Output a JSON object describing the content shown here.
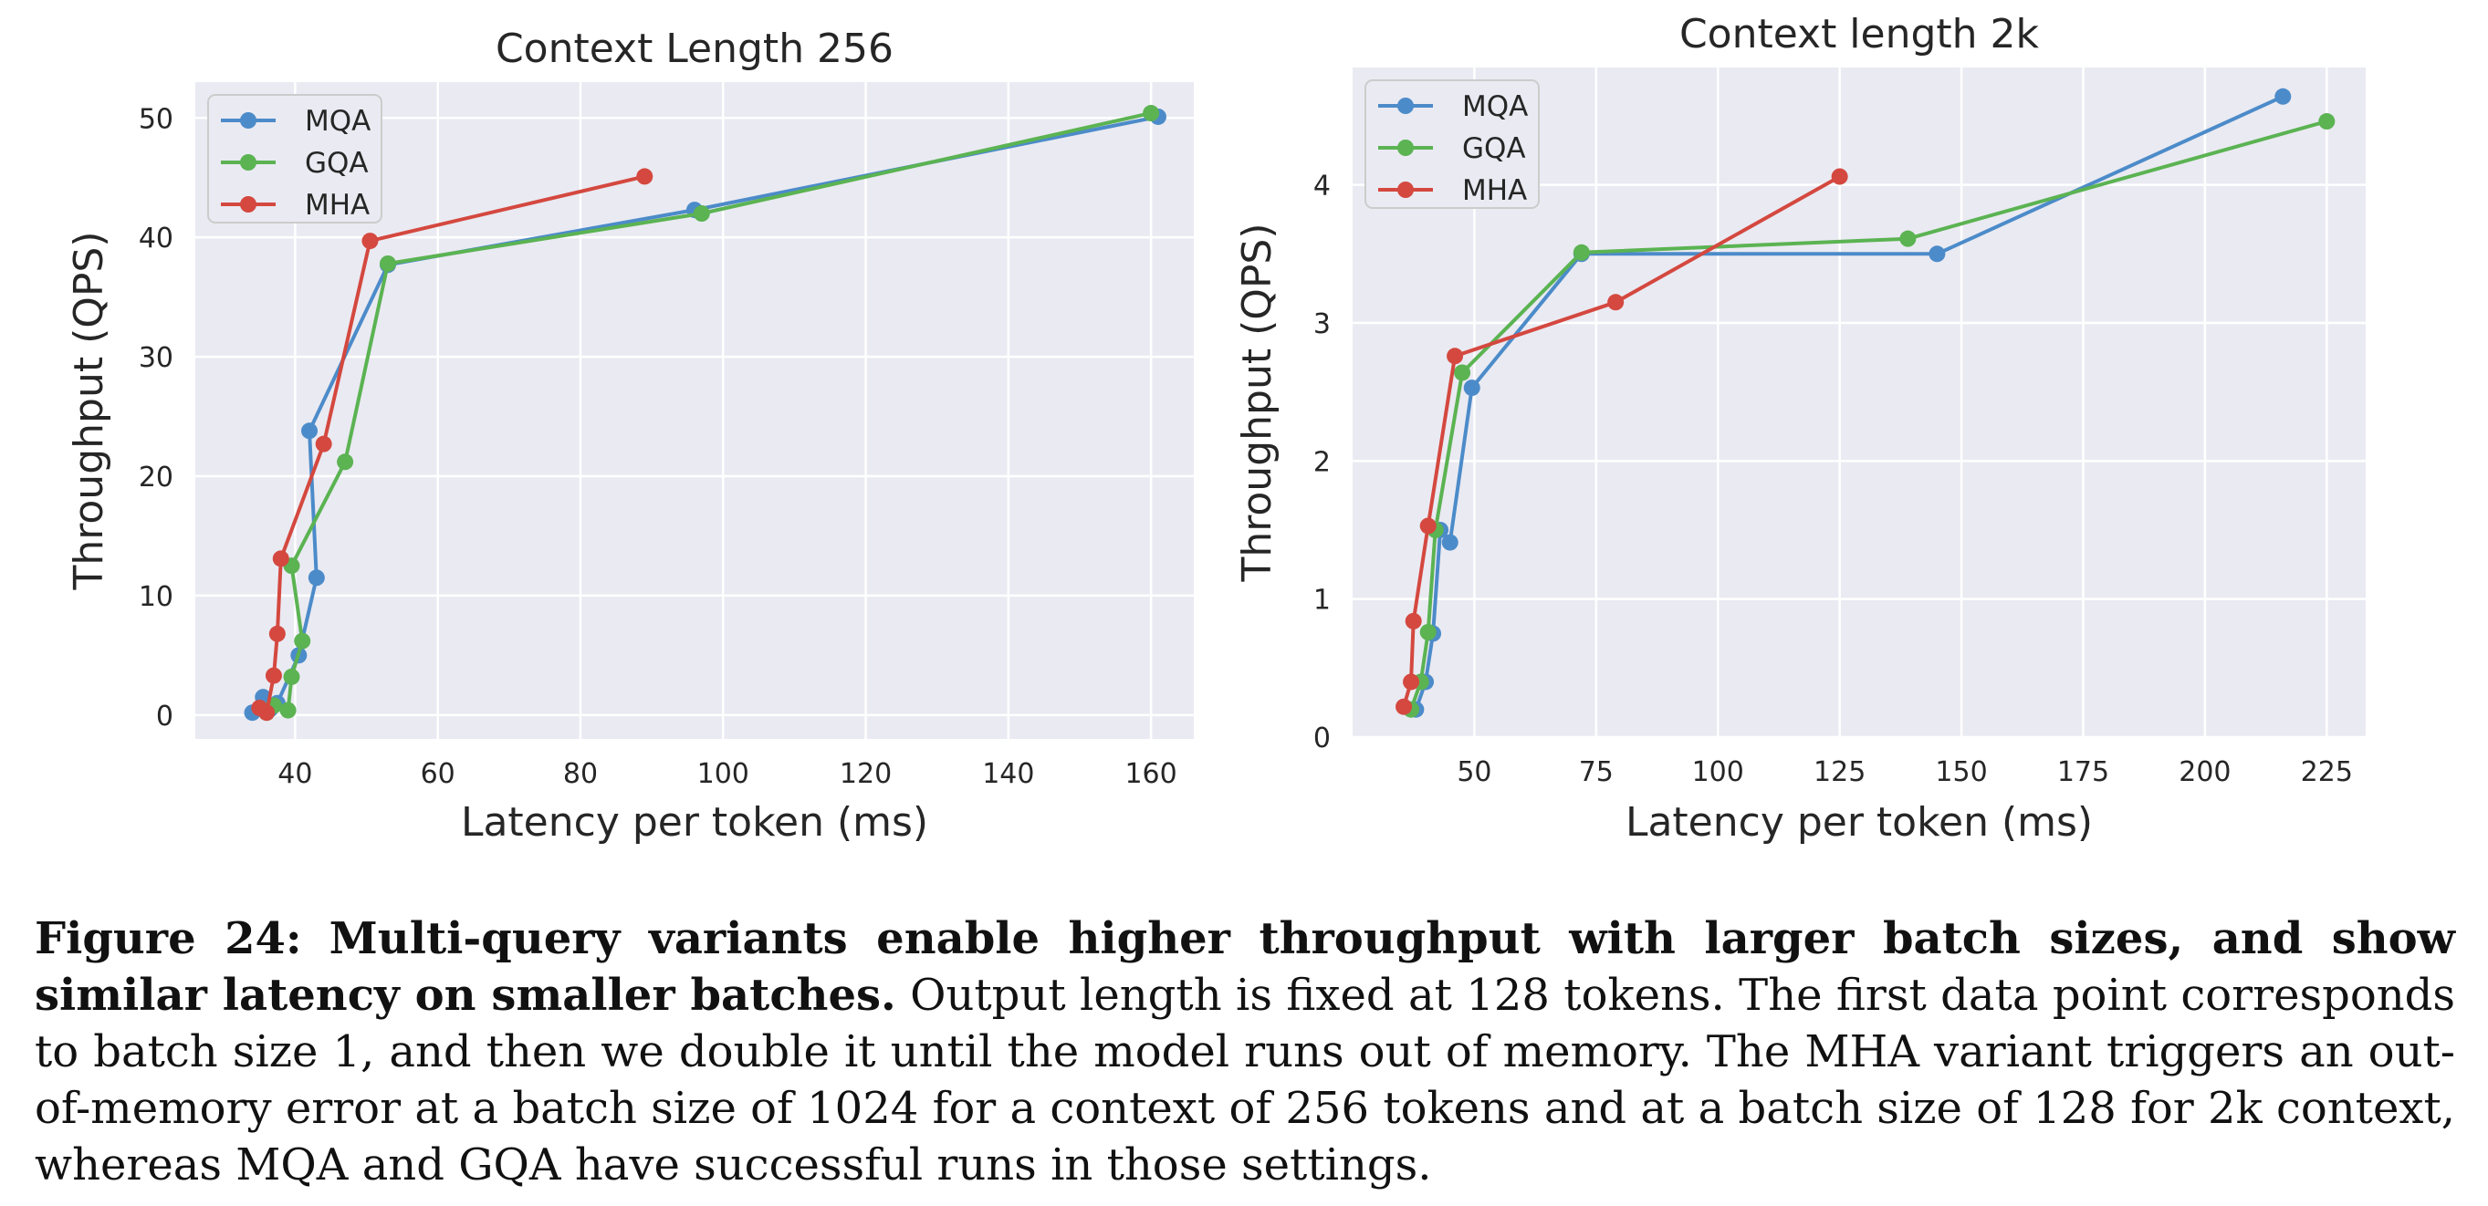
{
  "chart_data": [
    {
      "type": "line",
      "title": "Context Length 256",
      "xlabel": "Latency per token (ms)",
      "ylabel": "Throughput (QPS)",
      "xlim": [
        26,
        166
      ],
      "ylim": [
        -2,
        53
      ],
      "xticks": [
        40,
        60,
        80,
        100,
        120,
        140,
        160
      ],
      "xtick_labels": [
        "40",
        "60",
        "80",
        "100",
        "120",
        "140",
        "160"
      ],
      "yticks": [
        0,
        10,
        20,
        30,
        40,
        50
      ],
      "ytick_labels": [
        "0",
        "10",
        "20",
        "30",
        "40",
        "50"
      ],
      "grid": true,
      "legend_position": "top-left",
      "series": [
        {
          "name": "MQA",
          "color": "#4c8bc9",
          "x": [
            34,
            35.5,
            36.5,
            37.5,
            40.5,
            43,
            42,
            53,
            96,
            161
          ],
          "y": [
            0.2,
            1.5,
            0.5,
            1.0,
            5.0,
            11.5,
            23.8,
            37.7,
            42.3,
            50.1
          ]
        },
        {
          "name": "GQA",
          "color": "#5bb352",
          "x": [
            36,
            37,
            39,
            39.5,
            41,
            39.5,
            47,
            53,
            97,
            160
          ],
          "y": [
            0.2,
            0.8,
            0.4,
            3.2,
            6.2,
            12.5,
            21.2,
            37.8,
            42.0,
            50.4
          ]
        },
        {
          "name": "MHA",
          "color": "#d4483f",
          "x": [
            35,
            36,
            37,
            37.5,
            38,
            44,
            50.5,
            89
          ],
          "y": [
            0.6,
            0.2,
            3.3,
            6.8,
            13.1,
            22.7,
            39.7,
            45.1
          ]
        }
      ]
    },
    {
      "type": "line",
      "title": "Context length 2k",
      "xlabel": "Latency per token (ms)",
      "ylabel": "Throughput (QPS)",
      "xlim": [
        25,
        233
      ],
      "ylim": [
        0,
        4.85
      ],
      "xticks": [
        50,
        75,
        100,
        125,
        150,
        175,
        200,
        225
      ],
      "xtick_labels": [
        "50",
        "75",
        "100",
        "125",
        "150",
        "175",
        "200",
        "225"
      ],
      "yticks": [
        0,
        1,
        2,
        3,
        4
      ],
      "ytick_labels": [
        "0",
        "1",
        "2",
        "3",
        "4"
      ],
      "grid": true,
      "legend_position": "top-left",
      "series": [
        {
          "name": "MQA",
          "color": "#4c8bc9",
          "x": [
            38,
            40,
            41.5,
            43,
            45,
            49.5,
            72,
            145,
            216
          ],
          "y": [
            0.2,
            0.4,
            0.75,
            1.5,
            1.41,
            2.53,
            3.5,
            3.5,
            4.64
          ]
        },
        {
          "name": "GQA",
          "color": "#5bb352",
          "x": [
            37,
            39,
            40.5,
            42,
            47.5,
            72,
            139,
            225
          ],
          "y": [
            0.2,
            0.4,
            0.76,
            1.5,
            2.64,
            3.51,
            3.61,
            4.46
          ]
        },
        {
          "name": "MHA",
          "color": "#d4483f",
          "x": [
            35.5,
            37,
            37.5,
            40.5,
            46,
            79,
            125
          ],
          "y": [
            0.22,
            0.4,
            0.84,
            1.53,
            2.76,
            3.15,
            4.06
          ]
        }
      ]
    }
  ],
  "caption": {
    "label": "Figure 24:",
    "bold_text": "Multi-query variants enable higher throughput with larger batch sizes, and show similar latency on smaller batches.",
    "text": "Output length is fixed at 128 tokens. The first data point corresponds to batch size 1, and then we double it until the model runs out of memory. The MHA variant triggers an out-of-memory error at a batch size of 1024 for a context of 256 tokens and at a batch size of 128 for 2k context, whereas MQA and GQA have successful runs in those settings."
  }
}
